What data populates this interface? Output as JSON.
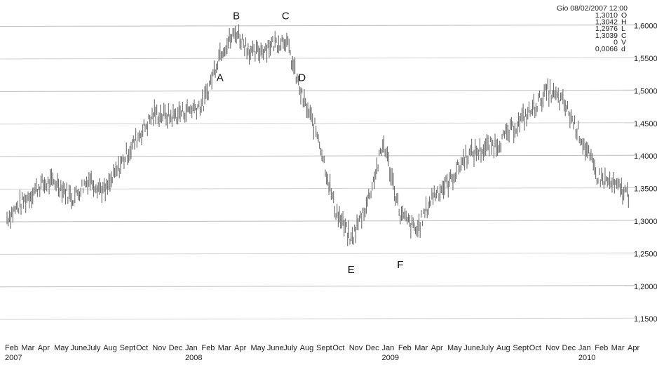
{
  "chart_data": {
    "type": "line",
    "x_unit": "month",
    "x": [
      "2007-02",
      "2007-03",
      "2007-04",
      "2007-05",
      "2007-06",
      "2007-07",
      "2007-08",
      "2007-09",
      "2007-10",
      "2007-11",
      "2007-12",
      "2008-01",
      "2008-02",
      "2008-03",
      "2008-04",
      "2008-05",
      "2008-06",
      "2008-07",
      "2008-08",
      "2008-09",
      "2008-10",
      "2008-11",
      "2008-12",
      "2009-01",
      "2009-02",
      "2009-03",
      "2009-04",
      "2009-05",
      "2009-06",
      "2009-07",
      "2009-08",
      "2009-09",
      "2009-10",
      "2009-11",
      "2009-12",
      "2010-01",
      "2010-02",
      "2010-03",
      "2010-04"
    ],
    "series": [
      {
        "values": [
          1.305,
          1.33,
          1.355,
          1.36,
          1.335,
          1.365,
          1.345,
          1.39,
          1.43,
          1.465,
          1.46,
          1.47,
          1.48,
          1.56,
          1.59,
          1.555,
          1.57,
          1.58,
          1.49,
          1.43,
          1.32,
          1.27,
          1.33,
          1.42,
          1.31,
          1.285,
          1.34,
          1.36,
          1.4,
          1.41,
          1.42,
          1.445,
          1.47,
          1.5,
          1.48,
          1.43,
          1.37,
          1.355,
          1.34
        ]
      }
    ],
    "ylim": [
      1.12,
      1.62
    ],
    "y_ticks": [
      "1,1500",
      "1,2000",
      "1,2500",
      "1,3000",
      "1,3500",
      "1,4000",
      "1,4500",
      "1,5000",
      "1,5500",
      "1,6000"
    ],
    "y_tick_values": [
      1.15,
      1.2,
      1.25,
      1.3,
      1.35,
      1.4,
      1.45,
      1.5,
      1.55,
      1.6
    ],
    "x_tick_labels": [
      "Feb",
      "Mar",
      "Apr",
      "May",
      "June",
      "July",
      "Aug",
      "Sept",
      "Oct",
      "Nov",
      "Dec",
      "Jan",
      "Feb",
      "Mar",
      "Apr",
      "May",
      "June",
      "July",
      "Aug",
      "Sept",
      "Oct",
      "Nov",
      "Dec",
      "Jan",
      "Feb",
      "Mar",
      "Apr",
      "May",
      "June",
      "July",
      "Aug",
      "Sept",
      "Oct",
      "Nov",
      "Dec",
      "Jan",
      "Feb",
      "Mar",
      "Apr"
    ],
    "year_labels": [
      {
        "label": "2007",
        "month_index": 0
      },
      {
        "label": "2008",
        "month_index": 11
      },
      {
        "label": "2009",
        "month_index": 23
      },
      {
        "label": "2010",
        "month_index": 35
      }
    ],
    "annotations": [
      {
        "label": "A",
        "x": "2008-03",
        "y": 1.515
      },
      {
        "label": "B",
        "x": "2008-04",
        "y": 1.61
      },
      {
        "label": "C",
        "x": "2008-07",
        "y": 1.61
      },
      {
        "label": "D",
        "x": "2008-08",
        "y": 1.515
      },
      {
        "label": "E",
        "x": "2008-11",
        "y": 1.22
      },
      {
        "label": "F",
        "x": "2009-02",
        "y": 1.228
      }
    ],
    "grid": true,
    "info_box": {
      "header": "Gio 08/02/2007 12:00",
      "rows": [
        {
          "value": "1,3010",
          "key": "O"
        },
        {
          "value": "1,3042",
          "key": "H"
        },
        {
          "value": "1,2976",
          "key": "L"
        },
        {
          "value": "1,3039",
          "key": "C"
        },
        {
          "value": "0",
          "key": "V"
        },
        {
          "value": "0,0066",
          "key": "d"
        }
      ]
    }
  }
}
